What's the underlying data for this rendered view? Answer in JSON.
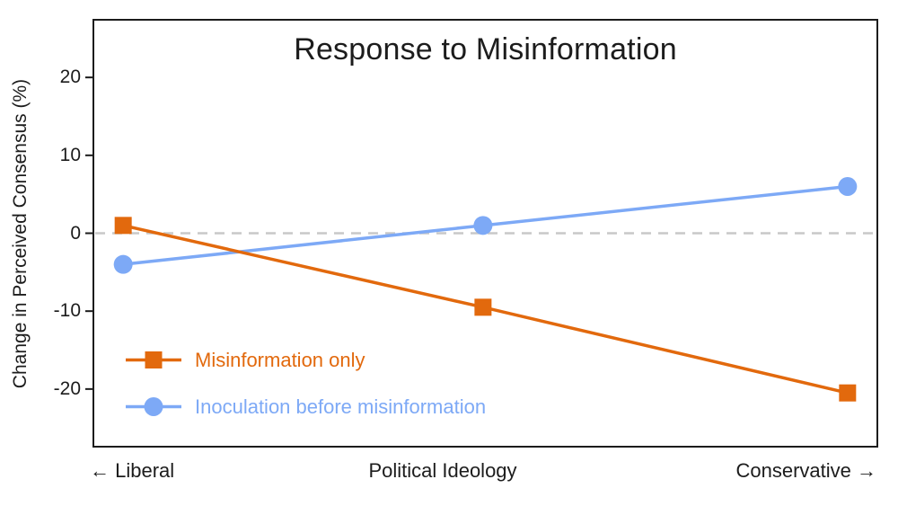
{
  "chart_data": {
    "type": "line",
    "title": "Response to Misinformation",
    "ylabel": "Change in Perceived Consensus (%)",
    "xlabel": "Political Ideology",
    "x_axis_left_label": "← Liberal",
    "x_axis_right_label": "Conservative →",
    "x": [
      0,
      1,
      2
    ],
    "yticks": [
      20,
      10,
      0,
      -10,
      -20
    ],
    "ylim": [
      -27.4,
      27.4
    ],
    "grid": "zero-line only",
    "zero_line": {
      "value": 0,
      "style": "dashed",
      "color": "#c8c8c8"
    },
    "legend_position": "inside lower left",
    "series": [
      {
        "name": "Misinformation only",
        "marker": "square",
        "color": "#E2690D",
        "values": [
          1,
          -9.5,
          -20.5
        ]
      },
      {
        "name": "Inoculation before misinformation",
        "marker": "circle",
        "color": "#7DA9F6",
        "values": [
          -4,
          1,
          6
        ]
      }
    ],
    "frame_color": "#1c1c1c",
    "background": "#ffffff"
  }
}
